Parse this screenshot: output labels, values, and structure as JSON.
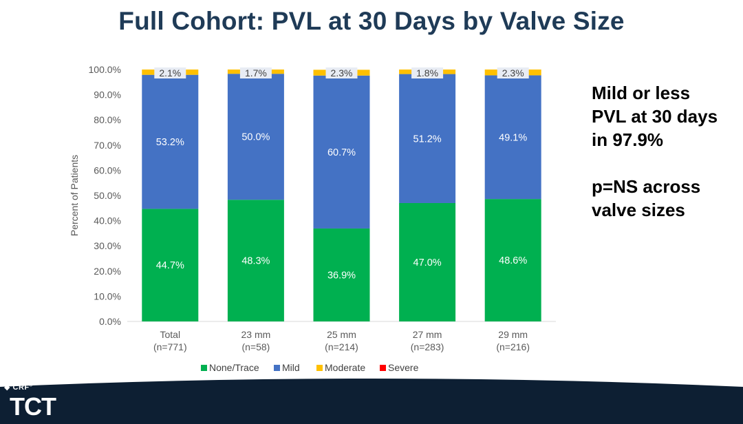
{
  "slide": {
    "title": "Full Cohort: PVL at 30 Days by Valve Size",
    "note_line1": "Mild or less",
    "note_line2": "PVL at 30 days",
    "note_line3": "in 97.9%",
    "note_line4": "p=NS across",
    "note_line5": "valve sizes",
    "logo_small": "CRF",
    "logo_small_mark": "®",
    "logo_big": "TCT"
  },
  "colors": {
    "none_trace": "#00b050",
    "mild": "#4472c4",
    "moderate": "#ffc000",
    "severe": "#ff0000",
    "title": "#1f3b57",
    "footer": "#0d1f33"
  },
  "chart_data": {
    "type": "bar",
    "stacked": true,
    "ylabel": "Percent of Patients",
    "ylim": [
      0,
      100
    ],
    "y_ticks": [
      "0.0%",
      "10.0%",
      "20.0%",
      "30.0%",
      "40.0%",
      "50.0%",
      "60.0%",
      "70.0%",
      "80.0%",
      "90.0%",
      "100.0%"
    ],
    "categories": [
      {
        "name": "Total",
        "n": "(n=771)"
      },
      {
        "name": "23 mm",
        "n": "(n=58)"
      },
      {
        "name": "25 mm",
        "n": "(n=214)"
      },
      {
        "name": "27 mm",
        "n": "(n=283)"
      },
      {
        "name": "29 mm",
        "n": "(n=216)"
      }
    ],
    "series": [
      {
        "name": "None/Trace",
        "values": [
          44.7,
          48.3,
          36.9,
          47.0,
          48.6
        ],
        "labels": [
          "44.7%",
          "48.3%",
          "36.9%",
          "47.0%",
          "48.6%"
        ]
      },
      {
        "name": "Mild",
        "values": [
          53.2,
          50.0,
          60.7,
          51.2,
          49.1
        ],
        "labels": [
          "53.2%",
          "50.0%",
          "60.7%",
          "51.2%",
          "49.1%"
        ]
      },
      {
        "name": "Moderate",
        "values": [
          2.1,
          1.7,
          2.3,
          1.8,
          2.3
        ],
        "labels": [
          "2.1%",
          "1.7%",
          "2.3%",
          "1.8%",
          "2.3%"
        ]
      },
      {
        "name": "Severe",
        "values": [
          0,
          0,
          0,
          0,
          0
        ],
        "labels": []
      }
    ],
    "legend_position": "bottom",
    "grid": false
  }
}
